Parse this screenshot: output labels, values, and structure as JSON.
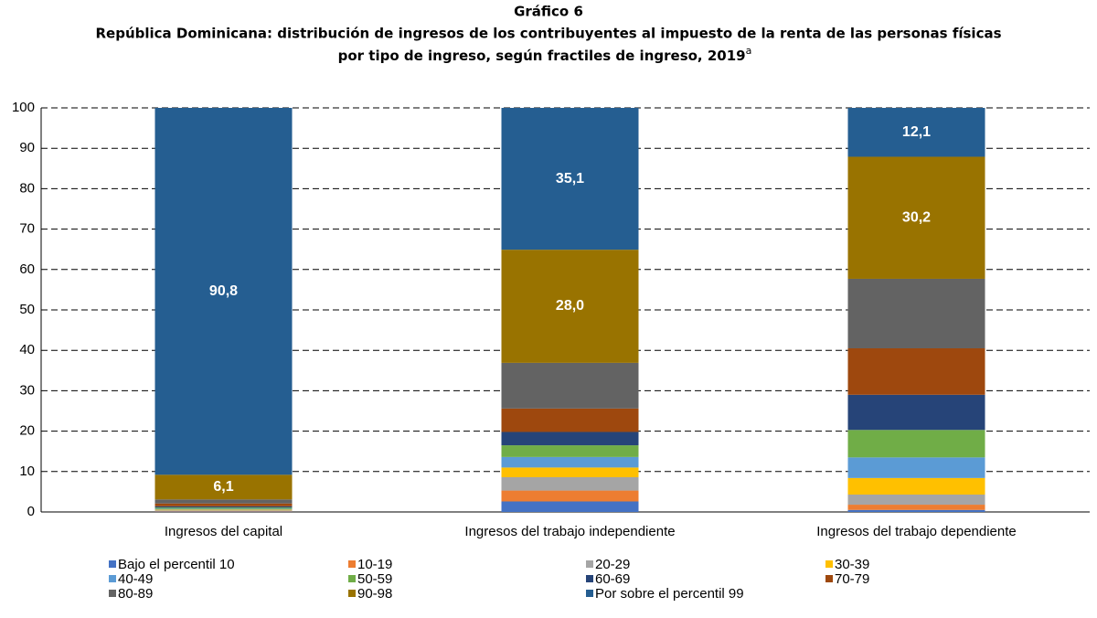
{
  "chart_data": {
    "type": "stacked_bar",
    "title": "Gráfico 6",
    "subtitle": [
      "República Dominicana: distribución de ingresos de los contribuyentes al impuesto de la renta de las personas físicas",
      "por tipo de ingreso, según fractiles de ingreso, 2019"
    ],
    "footnote_mark": "a",
    "categories": [
      "Ingresos del capital",
      "Ingresos del trabajo independiente",
      "Ingresos del trabajo dependiente"
    ],
    "series": [
      {
        "name": "Bajo el percentil 10",
        "color": "#4472c4",
        "values": [
          0.1,
          2.6,
          0.5
        ]
      },
      {
        "name": "10-19",
        "color": "#ed7d31",
        "values": [
          0.1,
          2.7,
          1.3
        ]
      },
      {
        "name": "20-29",
        "color": "#a5a5a5",
        "values": [
          0.2,
          3.3,
          2.5
        ]
      },
      {
        "name": "30-39",
        "color": "#ffc000",
        "values": [
          0.2,
          2.4,
          4.1
        ]
      },
      {
        "name": "40-49",
        "color": "#5b9bd5",
        "values": [
          0.2,
          2.6,
          5.1
        ]
      },
      {
        "name": "50-59",
        "color": "#70ad47",
        "values": [
          0.3,
          2.9,
          6.8
        ]
      },
      {
        "name": "60-69",
        "color": "#264478",
        "values": [
          0.3,
          3.3,
          8.7
        ]
      },
      {
        "name": "70-79",
        "color": "#9e480e",
        "values": [
          0.7,
          5.8,
          11.5
        ]
      },
      {
        "name": "80-89",
        "color": "#636363",
        "values": [
          1.0,
          11.3,
          17.2
        ]
      },
      {
        "name": "90-98",
        "color": "#997300",
        "values": [
          6.1,
          28.0,
          30.2
        ],
        "value_labels": [
          "6,1",
          "28,0",
          "30,2"
        ]
      },
      {
        "name": "Por sobre el percentil 99",
        "color": "#255e91",
        "values": [
          90.8,
          35.1,
          12.1
        ],
        "value_labels": [
          "90,8",
          "35,1",
          "12,1"
        ]
      }
    ],
    "ylim": [
      0,
      100
    ],
    "yticks": [
      0,
      10,
      20,
      30,
      40,
      50,
      60,
      70,
      80,
      90,
      100
    ],
    "grid": true
  }
}
